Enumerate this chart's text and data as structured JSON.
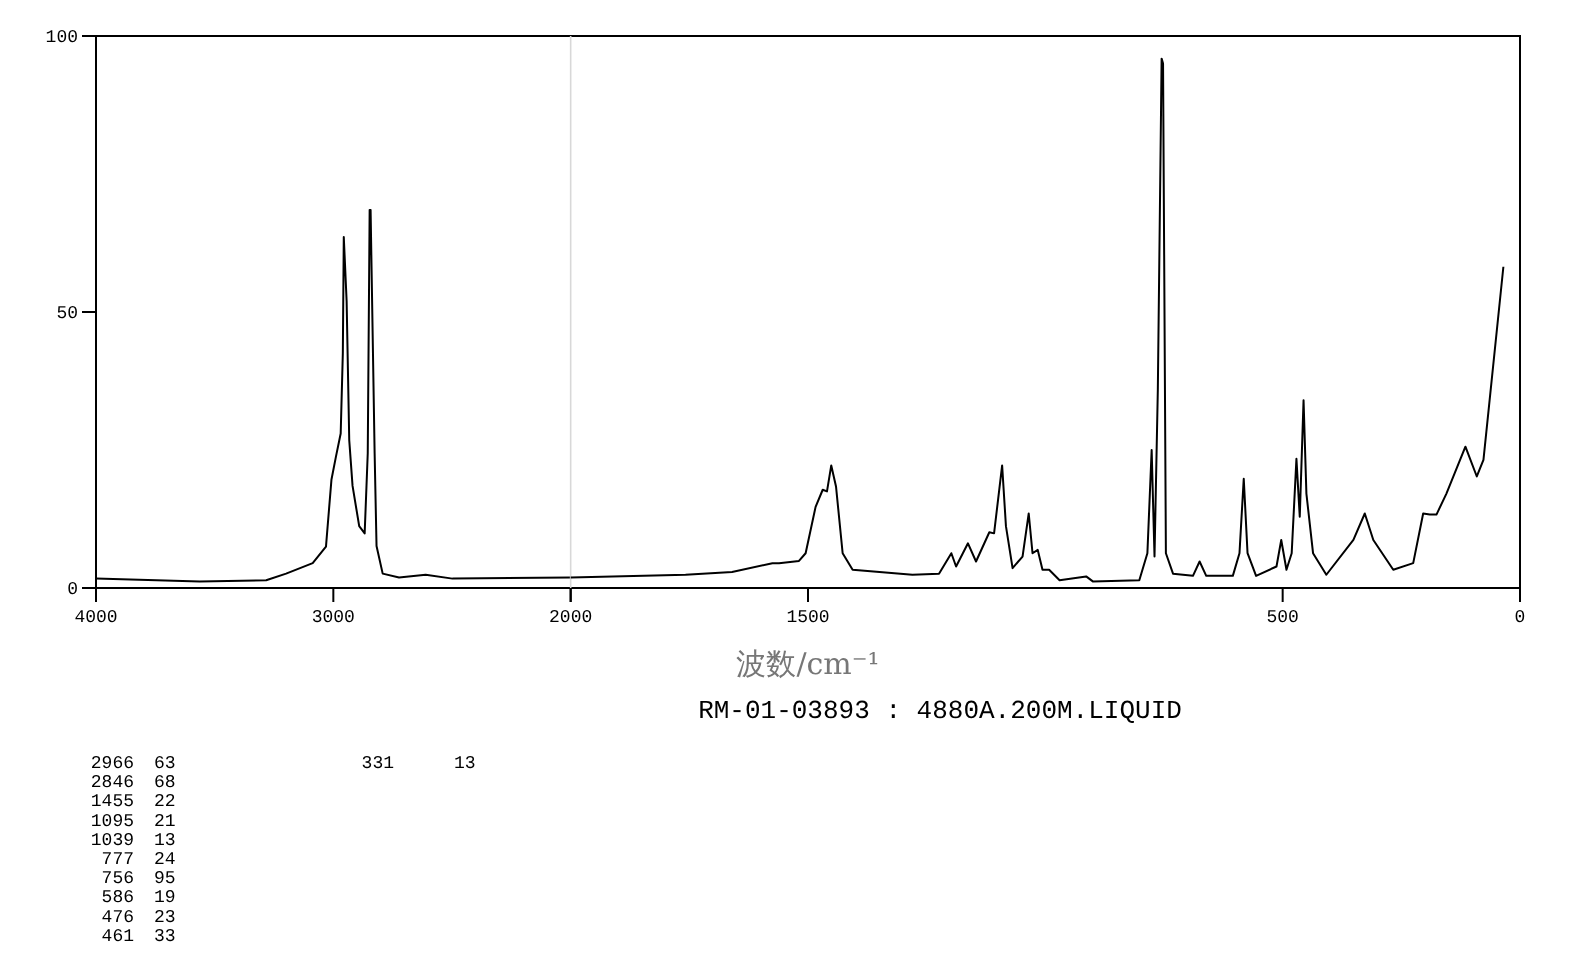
{
  "chart_data": [
    {
      "type": "line",
      "color": "#000000",
      "xlim": [
        4000,
        2000
      ],
      "ylim": [
        0,
        100
      ],
      "xticks": [
        4000,
        3000,
        2000
      ],
      "yticks": [
        0,
        50,
        100
      ],
      "grid": false,
      "marker": "none",
      "line_style": "solid",
      "x": [
        4000,
        3563,
        3283,
        3199,
        3087,
        3031,
        3008,
        2989,
        2969,
        2960,
        2956,
        2944,
        2933,
        2919,
        2891,
        2868,
        2855,
        2847,
        2843,
        2826,
        2818,
        2792,
        2723,
        2611,
        2498,
        2000
      ],
      "values": [
        1.7,
        1.2,
        1.4,
        2.6,
        4.5,
        7.5,
        19.6,
        23.8,
        28,
        42.5,
        63.6,
        52,
        26.8,
        18.5,
        11.2,
        9.9,
        24.4,
        68.5,
        68.5,
        24.4,
        7.6,
        2.6,
        1.9,
        2.4,
        1.7,
        1.9
      ]
    },
    {
      "type": "line",
      "color": "#000000",
      "xlabel": "波数/cm⁻¹",
      "xlim": [
        2000,
        0
      ],
      "ylim": [
        0,
        100
      ],
      "xticks": [
        {
          "value": 2000,
          "label": null
        },
        1500,
        500,
        0
      ],
      "tick_labels": "x",
      "grid": false,
      "marker": "none",
      "line_style": "solid",
      "x": [
        2000,
        1758,
        1660,
        1575,
        1561,
        1519,
        1505,
        1484,
        1469,
        1460,
        1451,
        1441,
        1427,
        1406,
        1280,
        1224,
        1198,
        1188,
        1163,
        1146,
        1118,
        1108,
        1091,
        1083,
        1069,
        1048,
        1035,
        1027,
        1016,
        1006,
        992,
        970,
        914,
        900,
        802,
        785,
        776,
        770,
        763,
        755,
        752,
        746,
        731,
        689,
        675,
        661,
        605,
        591,
        582,
        574,
        556,
        513,
        503,
        492,
        481,
        471,
        464,
        456,
        450,
        436,
        408,
        351,
        327,
        309,
        267,
        225,
        204,
        190,
        176,
        155,
        115,
        91,
        77,
        35
      ],
      "values": [
        1.9,
        2.4,
        2.9,
        4.5,
        4.5,
        4.9,
        6.3,
        14.7,
        17.8,
        17.5,
        22.2,
        18.4,
        6.3,
        3.3,
        2.4,
        2.6,
        6.3,
        3.9,
        8.1,
        4.8,
        10.1,
        9.9,
        22.2,
        11.2,
        3.6,
        5.7,
        13.5,
        6.3,
        6.9,
        3.3,
        3.3,
        1.4,
        2.1,
        1.2,
        1.4,
        6.3,
        25,
        5.7,
        35.9,
        95.9,
        95,
        6.3,
        2.6,
        2.2,
        4.8,
        2.2,
        2.2,
        6.3,
        19.8,
        6.3,
        2.2,
        3.9,
        8.7,
        3.3,
        6.3,
        23.4,
        12.9,
        34,
        17.1,
        6.3,
        2.4,
        8.7,
        13.5,
        8.7,
        3.3,
        4.5,
        13.5,
        13.3,
        13.3,
        17.1,
        25.6,
        20.2,
        23.2,
        58.2
      ],
      "annotations": [
        "RM-01-03893 : 4880A.200M.LIQUID",
        "2966 63",
        "2846 68",
        "1455 22",
        "1095 21",
        "1039 13",
        "777 24",
        "756 95",
        "586 19",
        "476 23",
        "461 33",
        "331 13"
      ]
    }
  ]
}
